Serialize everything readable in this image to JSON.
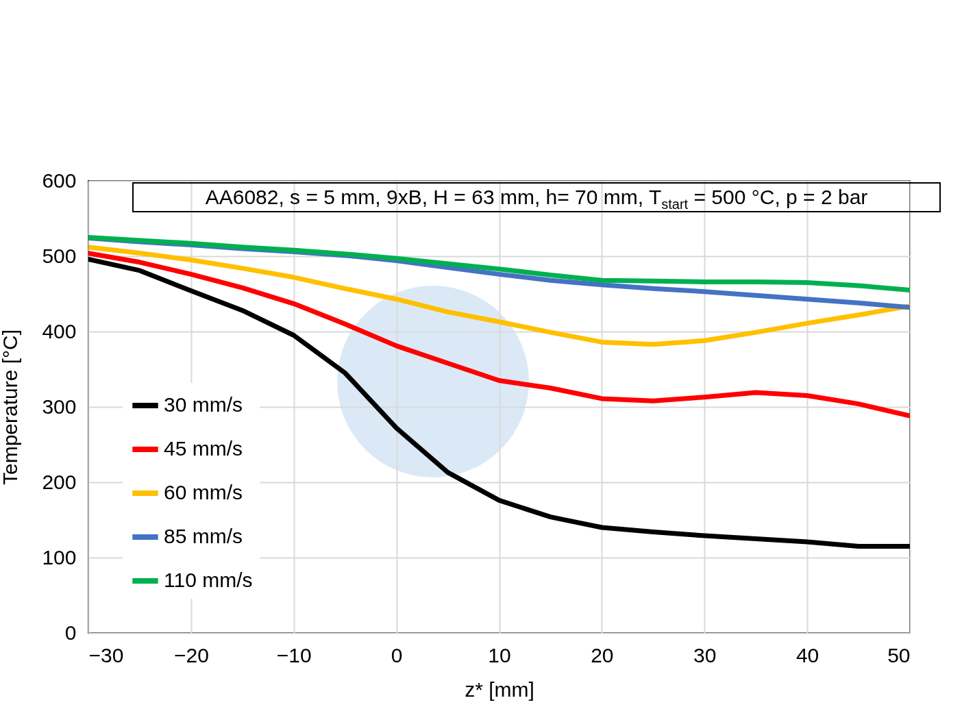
{
  "chart_data": {
    "type": "line",
    "xlabel": "z* [mm]",
    "ylabel": "Temperature [°C]",
    "annotations": [
      "AA6082, s = 5 mm,  9xB, H = 63 mm,  h= 70 mm,  T$_{start}$ = 500 °C, p = 2 bar"
    ],
    "x": [
      -30,
      -25,
      -20,
      -15,
      -10,
      -5,
      0,
      5,
      10,
      15,
      20,
      25,
      30,
      35,
      40,
      45,
      50
    ],
    "series": [
      {
        "name": "30 mm/s",
        "color": "#000000",
        "values": [
          496,
          481,
          454,
          428,
          395,
          345,
          272,
          213,
          176,
          154,
          140,
          134,
          129,
          125,
          121,
          115,
          115
        ]
      },
      {
        "name": "45 mm/s",
        "color": "#ff0000",
        "values": [
          504,
          492,
          476,
          458,
          437,
          410,
          381,
          358,
          335,
          325,
          311,
          308,
          313,
          319,
          315,
          304,
          288
        ]
      },
      {
        "name": "60 mm/s",
        "color": "#ffc000",
        "values": [
          512,
          504,
          495,
          484,
          472,
          457,
          443,
          426,
          413,
          399,
          386,
          383,
          388,
          399,
          411,
          422,
          434
        ]
      },
      {
        "name": "85 mm/s",
        "color": "#4472c4",
        "values": [
          524,
          519,
          515,
          510,
          506,
          501,
          494,
          485,
          476,
          468,
          462,
          457,
          453,
          448,
          443,
          438,
          432
        ]
      },
      {
        "name": "110 mm/s",
        "color": "#00b050",
        "values": [
          525,
          521,
          517,
          512,
          508,
          503,
          497,
          490,
          483,
          475,
          468,
          467,
          466,
          466,
          465,
          461,
          455
        ]
      }
    ],
    "xlim": [
      -30,
      50
    ],
    "xticks": [
      -30,
      -20,
      -10,
      0,
      10,
      20,
      30,
      40,
      50
    ],
    "ylim": [
      0,
      600
    ],
    "yticks": [
      0,
      100,
      200,
      300,
      400,
      500,
      600
    ],
    "grid": true,
    "legend": "bottom left",
    "marker": "none",
    "line_style": "solid"
  }
}
